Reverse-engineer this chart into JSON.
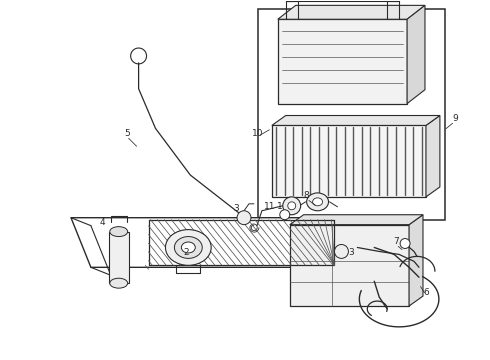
{
  "bg_color": "#ffffff",
  "lc": "#2a2a2a",
  "lc_gray": "#555555",
  "lc_light": "#888888",
  "fig_width": 4.9,
  "fig_height": 3.6,
  "dpi": 100
}
